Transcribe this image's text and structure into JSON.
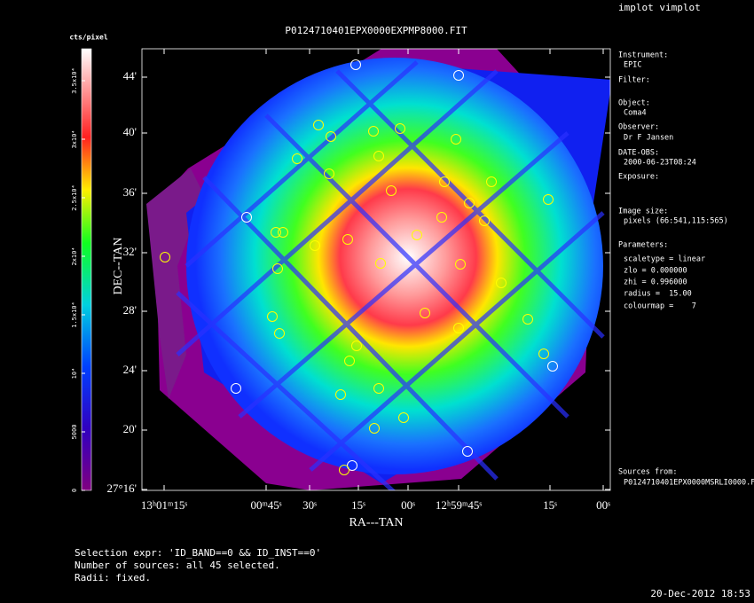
{
  "header": {
    "tool": "implot vimplot",
    "title": "P0124710401EPX0000EXPMP8000.FIT",
    "date": "20-Dec-2012 18:53"
  },
  "colorbar": {
    "label": "cts/pixel",
    "ticks": [
      "0",
      "5000",
      "10⁴",
      "1.5x10⁴",
      "2x10⁴",
      "2.5x10⁴",
      "3x10⁴",
      "3.5x10⁴"
    ]
  },
  "axes": {
    "y_title": "DEC--TAN",
    "x_title": "RA---TAN",
    "y_ticks": [
      "44'",
      "40'",
      "36'",
      "32'",
      "28'",
      "24'",
      "20'",
      "27°16'"
    ],
    "x_ticks": [
      "13ʰ01ᵐ15ˢ",
      "00ᵐ45ˢ",
      "30ˢ",
      "15ˢ",
      "00ˢ",
      "12ʰ59ᵐ45ˢ",
      "15ˢ",
      "00ˢ"
    ]
  },
  "info": [
    "Instrument:",
    "EPIC",
    "Filter:",
    "Object:",
    "Coma4",
    "Observer:",
    "Dr F Jansen",
    "DATE-OBS:",
    "2000-06-23T08:24",
    "Exposure:",
    "Image size:",
    "pixels (66:541,115:565)",
    "Parameters:",
    "scaletype = linear",
    "zlo = 0.000000",
    "zhi = 0.996000",
    "radius =  15.00",
    "colourmap =    7",
    "Sources from:",
    "P0124710401EPX0000MSRLI0000.F"
  ],
  "footer": [
    "Selection expr: 'ID_BAND==0 && ID_INST==0'",
    "Number of sources: all 45 selected.",
    "Radii: fixed."
  ]
}
